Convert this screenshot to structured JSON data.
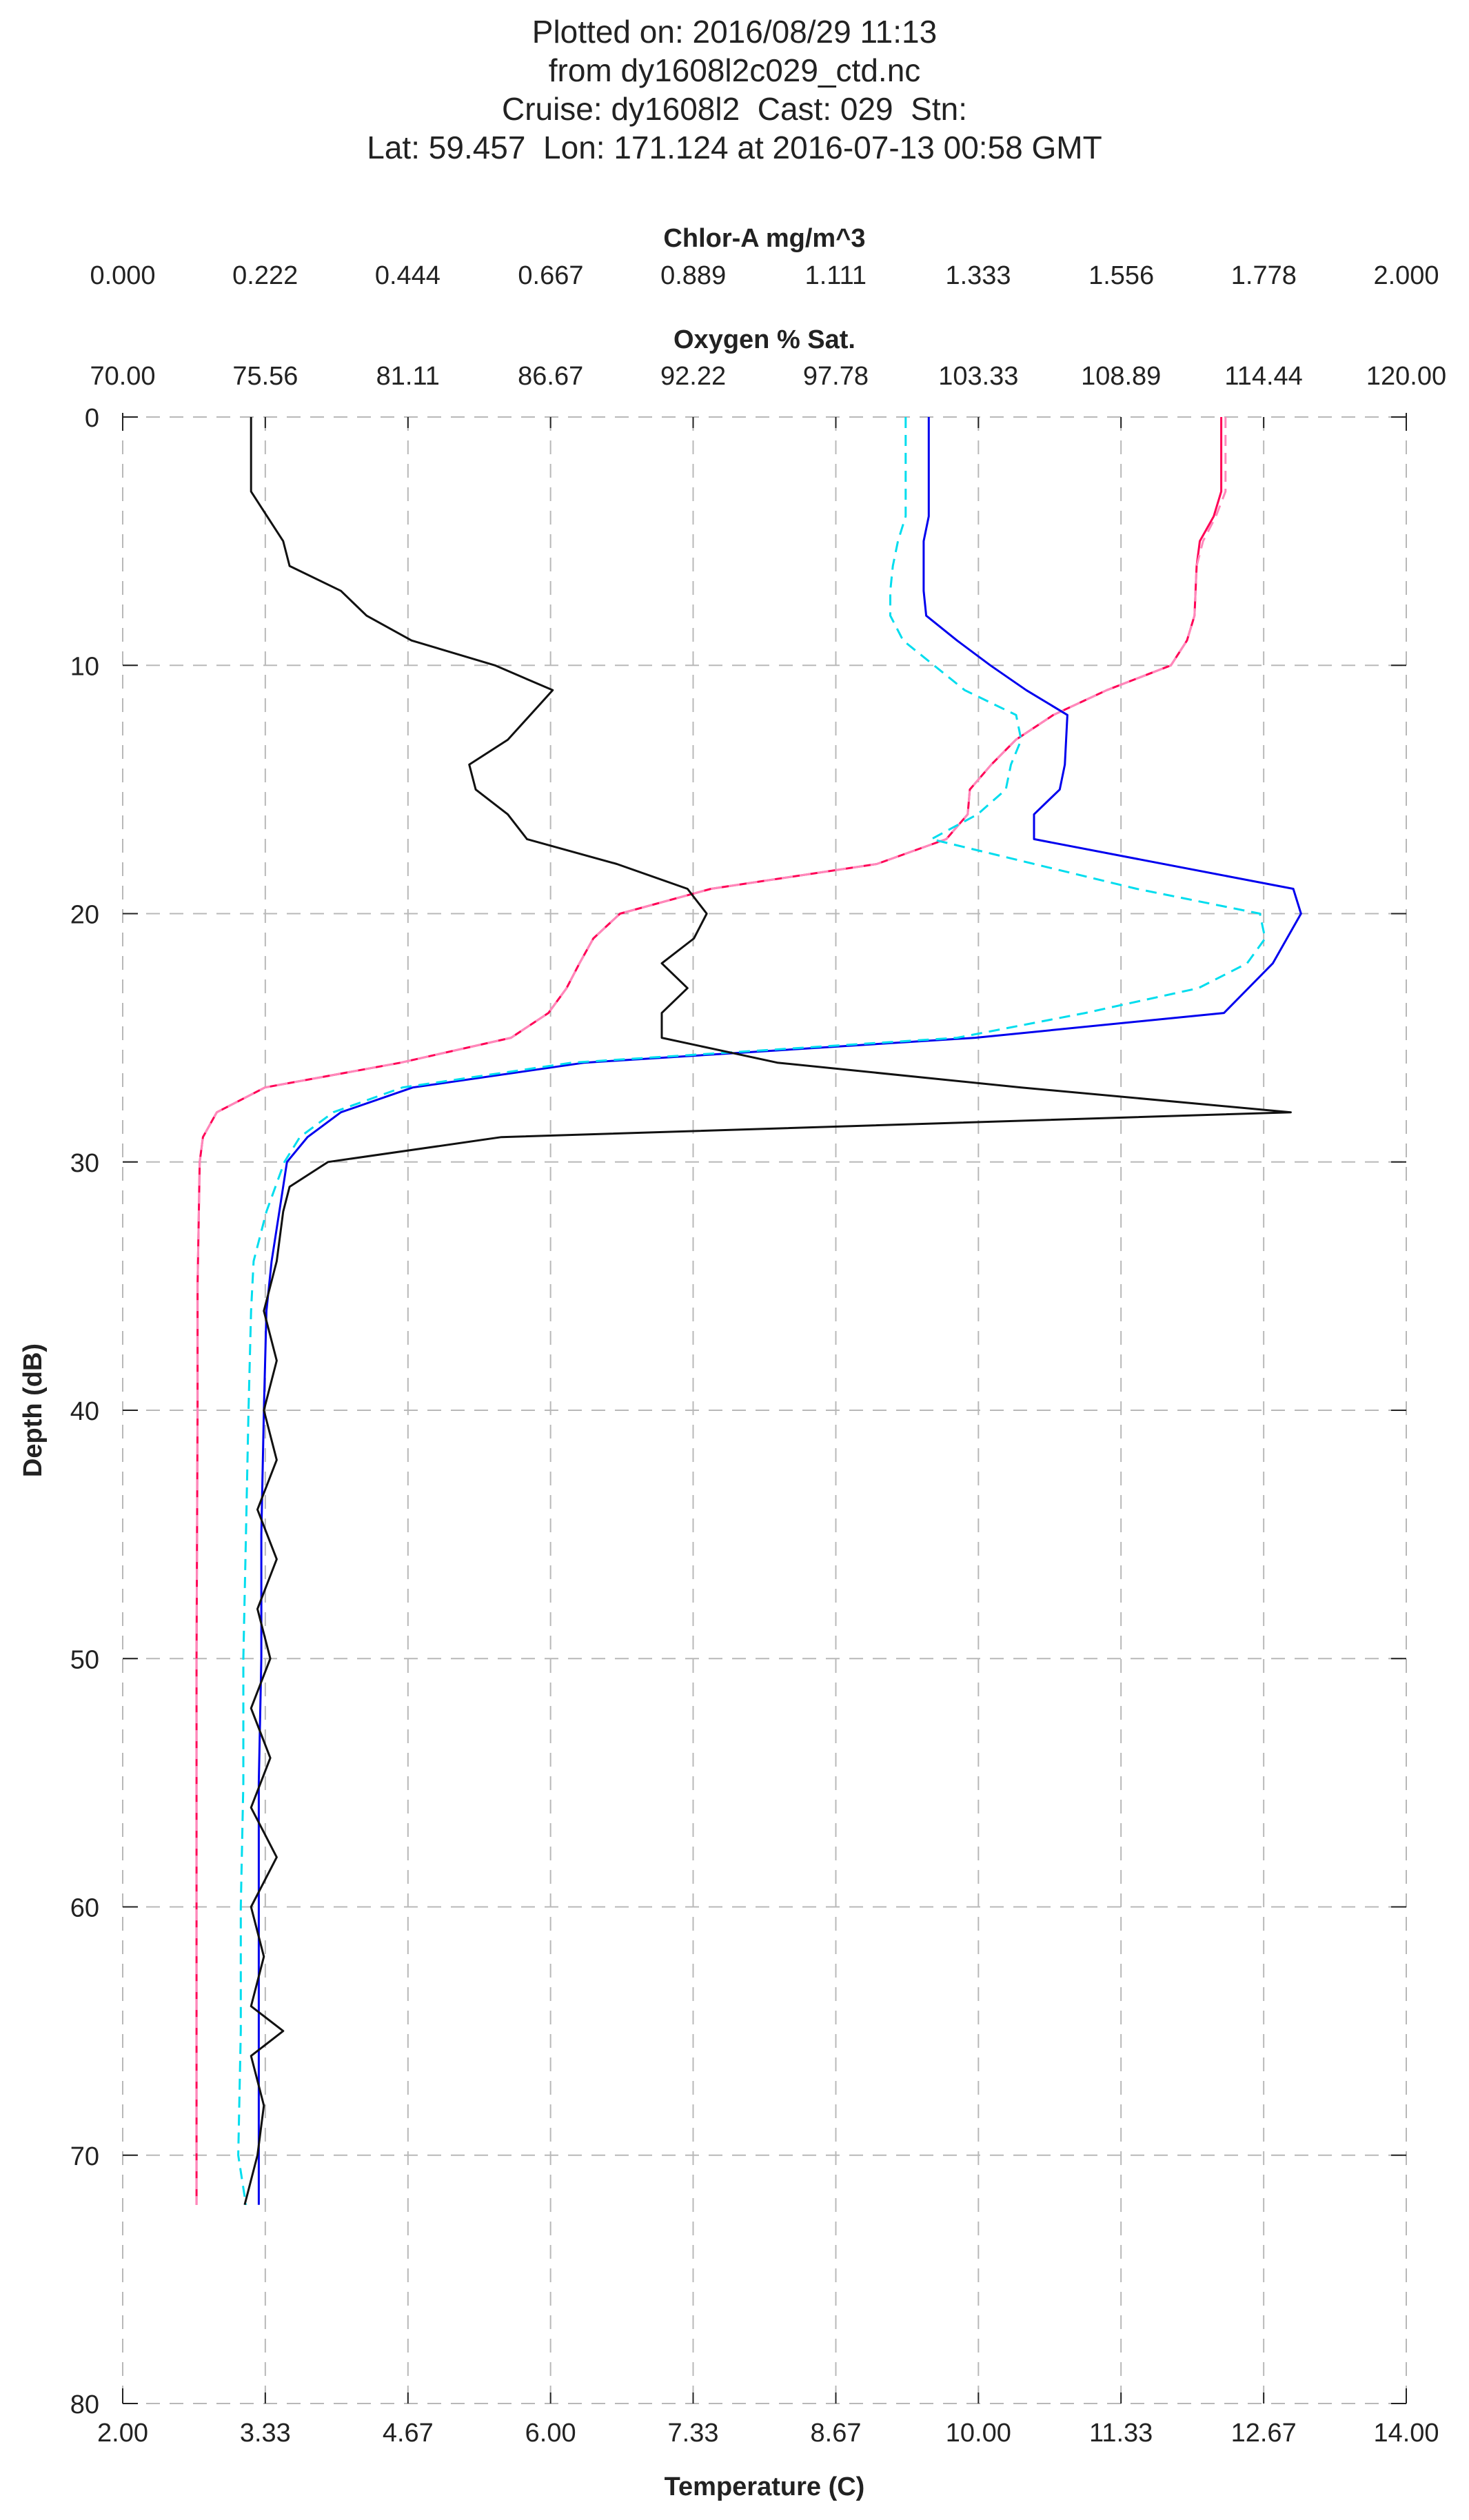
{
  "header": {
    "lines": [
      "Plotted on: 2016/08/29 11:13",
      "from dy1608l2c029_ctd.nc",
      "Cruise: dy1608l2  Cast: 029  Stn:",
      "Lat: 59.457  Lon: 171.124 at 2016-07-13 00:58 GMT"
    ]
  },
  "chart_data": {
    "type": "line",
    "title": "",
    "grid": true,
    "y_axis": {
      "label": "Depth (dB)",
      "range": [
        0,
        80
      ],
      "reversed": true,
      "ticks": [
        0,
        10,
        20,
        30,
        40,
        50,
        60,
        70,
        80
      ],
      "tick_labels": [
        "0",
        "10",
        "20",
        "30",
        "40",
        "50",
        "60",
        "70",
        "80"
      ]
    },
    "x_axes": {
      "temperature": {
        "label": "Temperature (C)",
        "position": "bottom",
        "range": [
          2.0,
          14.0
        ],
        "ticks": [
          2.0,
          3.333,
          4.667,
          6.0,
          7.333,
          8.667,
          10.0,
          11.333,
          12.667,
          14.0
        ],
        "tick_labels": [
          "2.00",
          "3.33",
          "4.67",
          "6.00",
          "7.33",
          "8.67",
          "10.00",
          "11.33",
          "12.67",
          "14.00"
        ]
      },
      "oxygen": {
        "label": "Oxygen % Sat.",
        "position": "top",
        "range": [
          70.0,
          120.0
        ],
        "ticks": [
          70.0,
          75.556,
          81.111,
          86.667,
          92.222,
          97.778,
          103.333,
          108.889,
          114.444,
          120.0
        ],
        "tick_labels": [
          "70.00",
          "75.56",
          "81.11",
          "86.67",
          "92.22",
          "97.78",
          "103.33",
          "108.89",
          "114.44",
          "120.00"
        ]
      },
      "chlor": {
        "label": "Chlor-A mg/m^3",
        "position": "top",
        "range": [
          0.0,
          2.0
        ],
        "ticks": [
          0.0,
          0.222,
          0.444,
          0.667,
          0.889,
          1.111,
          1.333,
          1.556,
          1.778,
          2.0
        ],
        "tick_labels": [
          "0.000",
          "0.222",
          "0.444",
          "0.667",
          "0.889",
          "1.111",
          "1.333",
          "1.556",
          "1.778",
          "2.000"
        ]
      }
    },
    "series": [
      {
        "axis": "temperature",
        "color": "#ff0055",
        "dash": "solid",
        "points": [
          [
            12.27,
            0
          ],
          [
            12.27,
            3
          ],
          [
            12.2,
            4
          ],
          [
            12.07,
            5
          ],
          [
            12.04,
            6
          ],
          [
            12.02,
            8
          ],
          [
            11.95,
            9
          ],
          [
            11.8,
            10
          ],
          [
            11.2,
            11
          ],
          [
            10.7,
            12
          ],
          [
            10.35,
            13
          ],
          [
            10.12,
            14
          ],
          [
            9.92,
            15
          ],
          [
            9.9,
            16
          ],
          [
            9.7,
            17
          ],
          [
            9.05,
            18
          ],
          [
            7.5,
            19
          ],
          [
            6.65,
            20
          ],
          [
            6.4,
            21
          ],
          [
            6.27,
            22
          ],
          [
            6.15,
            23
          ],
          [
            5.98,
            24
          ],
          [
            5.63,
            25
          ],
          [
            4.6,
            26
          ],
          [
            3.33,
            27
          ],
          [
            2.88,
            28
          ],
          [
            2.75,
            29
          ],
          [
            2.72,
            30
          ],
          [
            2.7,
            35
          ],
          [
            2.7,
            40
          ],
          [
            2.69,
            50
          ],
          [
            2.69,
            60
          ],
          [
            2.69,
            72
          ]
        ]
      },
      {
        "axis": "temperature",
        "color": "#ff88bb",
        "dash": "dash",
        "points": [
          [
            12.31,
            0
          ],
          [
            12.31,
            3
          ],
          [
            12.22,
            4
          ],
          [
            12.1,
            5
          ],
          [
            12.04,
            6
          ],
          [
            12.02,
            8
          ],
          [
            11.95,
            9
          ],
          [
            11.8,
            10
          ],
          [
            11.2,
            11
          ],
          [
            10.7,
            12
          ],
          [
            10.35,
            13
          ],
          [
            10.12,
            14
          ],
          [
            9.92,
            15
          ],
          [
            9.9,
            16
          ],
          [
            9.7,
            17
          ],
          [
            9.05,
            18
          ],
          [
            7.5,
            19
          ],
          [
            6.65,
            20
          ],
          [
            6.4,
            21
          ],
          [
            6.27,
            22
          ],
          [
            6.15,
            23
          ],
          [
            5.98,
            24
          ],
          [
            5.63,
            25
          ],
          [
            4.6,
            26
          ],
          [
            3.33,
            27
          ],
          [
            2.88,
            28
          ],
          [
            2.75,
            29
          ],
          [
            2.72,
            30
          ],
          [
            2.7,
            35
          ],
          [
            2.7,
            40
          ],
          [
            2.69,
            50
          ],
          [
            2.69,
            60
          ],
          [
            2.69,
            72
          ]
        ]
      },
      {
        "axis": "oxygen",
        "color": "#0000ee",
        "dash": "solid",
        "points": [
          [
            101.4,
            0
          ],
          [
            101.4,
            4
          ],
          [
            101.2,
            5
          ],
          [
            101.2,
            7
          ],
          [
            101.3,
            8
          ],
          [
            102.5,
            9
          ],
          [
            103.8,
            10
          ],
          [
            105.2,
            11
          ],
          [
            106.8,
            12
          ],
          [
            106.7,
            14
          ],
          [
            106.5,
            15
          ],
          [
            105.5,
            16
          ],
          [
            105.5,
            17
          ],
          [
            115.6,
            19
          ],
          [
            115.9,
            20
          ],
          [
            114.8,
            22
          ],
          [
            112.9,
            24
          ],
          [
            103.2,
            25
          ],
          [
            88.0,
            26
          ],
          [
            81.3,
            27
          ],
          [
            78.5,
            28
          ],
          [
            77.2,
            29
          ],
          [
            76.4,
            30
          ],
          [
            76.1,
            32
          ],
          [
            75.8,
            34
          ],
          [
            75.6,
            36
          ],
          [
            75.5,
            40
          ],
          [
            75.4,
            45
          ],
          [
            75.4,
            50
          ],
          [
            75.3,
            55
          ],
          [
            75.3,
            60
          ],
          [
            75.3,
            65
          ],
          [
            75.3,
            72
          ]
        ]
      },
      {
        "axis": "oxygen",
        "color": "#00ddee",
        "dash": "dash",
        "points": [
          [
            100.5,
            0
          ],
          [
            100.5,
            4
          ],
          [
            100.2,
            5
          ],
          [
            100.0,
            6
          ],
          [
            99.9,
            7
          ],
          [
            99.9,
            8
          ],
          [
            100.4,
            9
          ],
          [
            102.8,
            11
          ],
          [
            104.8,
            12
          ],
          [
            105.0,
            13
          ],
          [
            104.6,
            14
          ],
          [
            104.4,
            15
          ],
          [
            103.3,
            16
          ],
          [
            101.5,
            17
          ],
          [
            109.5,
            19
          ],
          [
            114.3,
            20
          ],
          [
            114.5,
            21
          ],
          [
            113.8,
            22
          ],
          [
            111.9,
            23
          ],
          [
            107.5,
            24
          ],
          [
            102.5,
            25
          ],
          [
            87.5,
            26
          ],
          [
            80.9,
            27
          ],
          [
            78.2,
            28
          ],
          [
            76.9,
            29
          ],
          [
            76.3,
            30
          ],
          [
            75.6,
            32
          ],
          [
            75.1,
            34
          ],
          [
            75.0,
            36
          ],
          [
            74.9,
            40
          ],
          [
            74.8,
            45
          ],
          [
            74.7,
            50
          ],
          [
            74.7,
            55
          ],
          [
            74.6,
            60
          ],
          [
            74.6,
            65
          ],
          [
            74.5,
            70
          ],
          [
            74.8,
            72
          ]
        ]
      },
      {
        "axis": "chlor",
        "color": "#111111",
        "dash": "solid",
        "points": [
          [
            0.2,
            0
          ],
          [
            0.2,
            3
          ],
          [
            0.25,
            5
          ],
          [
            0.26,
            6
          ],
          [
            0.34,
            7
          ],
          [
            0.38,
            8
          ],
          [
            0.45,
            9
          ],
          [
            0.58,
            10
          ],
          [
            0.67,
            11
          ],
          [
            0.6,
            13
          ],
          [
            0.54,
            14
          ],
          [
            0.55,
            15
          ],
          [
            0.6,
            16
          ],
          [
            0.63,
            17
          ],
          [
            0.77,
            18
          ],
          [
            0.88,
            19
          ],
          [
            0.91,
            20
          ],
          [
            0.89,
            21
          ],
          [
            0.84,
            22
          ],
          [
            0.88,
            23
          ],
          [
            0.84,
            24
          ],
          [
            0.84,
            25
          ],
          [
            1.02,
            26
          ],
          [
            1.4,
            27
          ],
          [
            1.82,
            28
          ],
          [
            0.59,
            29
          ],
          [
            0.32,
            30
          ],
          [
            0.26,
            31
          ],
          [
            0.25,
            32
          ],
          [
            0.24,
            34
          ],
          [
            0.22,
            36
          ],
          [
            0.24,
            38
          ],
          [
            0.22,
            40
          ],
          [
            0.24,
            42
          ],
          [
            0.21,
            44
          ],
          [
            0.24,
            46
          ],
          [
            0.21,
            48
          ],
          [
            0.23,
            50
          ],
          [
            0.2,
            52
          ],
          [
            0.23,
            54
          ],
          [
            0.2,
            56
          ],
          [
            0.24,
            58
          ],
          [
            0.2,
            60
          ],
          [
            0.22,
            62
          ],
          [
            0.2,
            64
          ],
          [
            0.25,
            65
          ],
          [
            0.2,
            66
          ],
          [
            0.22,
            68
          ],
          [
            0.21,
            70
          ],
          [
            0.2,
            71
          ],
          [
            0.19,
            72
          ]
        ]
      }
    ]
  }
}
